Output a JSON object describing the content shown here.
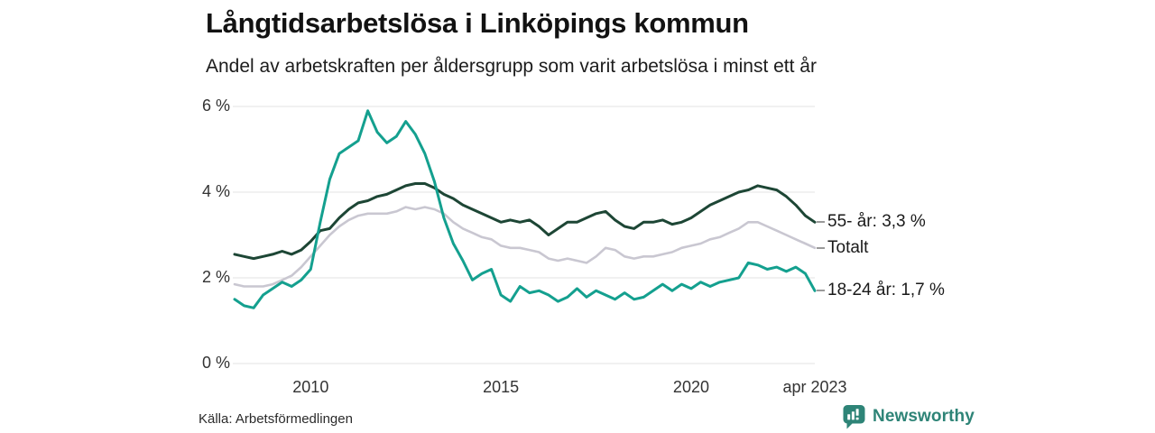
{
  "header": {
    "title": "Långtidsarbetslösa i Linköpings kommun",
    "subtitle": "Andel av arbetskraften per åldersgrupp som varit arbetslösa i minst ett år"
  },
  "footer": {
    "source": "Källa: Arbetsförmedlingen",
    "brand": "Newsworthy"
  },
  "colors": {
    "grid": "#e3e3e3",
    "brand_teal": "#2e8477",
    "series_55": "#1d4635",
    "series_total": "#c9c7d1",
    "series_1824": "#14a08f"
  },
  "chart_data": {
    "type": "line",
    "title": "Långtidsarbetslösa i Linköpings kommun",
    "subtitle": "Andel av arbetskraften per åldersgrupp som varit arbetslösa i minst ett år",
    "unit": "% of labour force",
    "frequency": "quarterly samples of monthly series",
    "x_axis": {
      "start": "2008-01",
      "end": "2023-04",
      "months_span": 183,
      "ticks": [
        {
          "label": "2010",
          "month": 24
        },
        {
          "label": "2015",
          "month": 84
        },
        {
          "label": "2020",
          "month": 144
        },
        {
          "label": "apr 2023",
          "month": 183
        }
      ]
    },
    "y_axis": {
      "min": 0,
      "max": 6,
      "grid": true,
      "ticks": [
        {
          "label": "6 %",
          "value": 6
        },
        {
          "label": "4 %",
          "value": 4
        },
        {
          "label": "2 %",
          "value": 2
        },
        {
          "label": "0 %",
          "value": 0
        }
      ]
    },
    "legend_position": "right-of-line-ends",
    "x_months": [
      0,
      3,
      6,
      9,
      12,
      15,
      18,
      21,
      24,
      27,
      30,
      33,
      36,
      39,
      42,
      45,
      48,
      51,
      54,
      57,
      60,
      63,
      66,
      69,
      72,
      75,
      78,
      81,
      84,
      87,
      90,
      93,
      96,
      99,
      102,
      105,
      108,
      111,
      114,
      117,
      120,
      123,
      126,
      129,
      132,
      135,
      138,
      141,
      144,
      147,
      150,
      153,
      156,
      159,
      162,
      165,
      168,
      171,
      174,
      177,
      180,
      183
    ],
    "series": [
      {
        "id": "55",
        "name": "55- år",
        "end_label": "55- år: 3,3 %",
        "end_value": 3.3,
        "color": "#1d4635",
        "width": 3,
        "values": [
          2.55,
          2.5,
          2.45,
          2.5,
          2.55,
          2.62,
          2.55,
          2.65,
          2.85,
          3.1,
          3.15,
          3.4,
          3.6,
          3.75,
          3.8,
          3.9,
          3.95,
          4.05,
          4.15,
          4.2,
          4.2,
          4.1,
          3.95,
          3.85,
          3.7,
          3.6,
          3.5,
          3.4,
          3.3,
          3.35,
          3.3,
          3.35,
          3.2,
          3.0,
          3.15,
          3.3,
          3.3,
          3.4,
          3.5,
          3.55,
          3.35,
          3.2,
          3.15,
          3.3,
          3.3,
          3.35,
          3.25,
          3.3,
          3.4,
          3.55,
          3.7,
          3.8,
          3.9,
          4.0,
          4.05,
          4.15,
          4.1,
          4.05,
          3.9,
          3.7,
          3.45,
          3.3
        ]
      },
      {
        "id": "total",
        "name": "Totalt",
        "end_label": "Totalt",
        "end_value": 2.7,
        "color": "#c9c7d1",
        "width": 2.6,
        "values": [
          1.85,
          1.8,
          1.8,
          1.8,
          1.85,
          1.95,
          2.05,
          2.25,
          2.5,
          2.75,
          3.0,
          3.2,
          3.35,
          3.45,
          3.5,
          3.5,
          3.5,
          3.55,
          3.65,
          3.6,
          3.65,
          3.6,
          3.5,
          3.3,
          3.15,
          3.05,
          2.95,
          2.9,
          2.75,
          2.7,
          2.7,
          2.65,
          2.6,
          2.45,
          2.4,
          2.45,
          2.4,
          2.35,
          2.5,
          2.7,
          2.65,
          2.5,
          2.45,
          2.5,
          2.5,
          2.55,
          2.6,
          2.7,
          2.75,
          2.8,
          2.9,
          2.95,
          3.05,
          3.15,
          3.3,
          3.3,
          3.2,
          3.1,
          3.0,
          2.9,
          2.8,
          2.7
        ]
      },
      {
        "id": "1824",
        "name": "18-24 år",
        "end_label": "18-24 år: 1,7 %",
        "end_value": 1.7,
        "color": "#14a08f",
        "width": 3,
        "values": [
          1.5,
          1.35,
          1.3,
          1.6,
          1.75,
          1.9,
          1.8,
          1.95,
          2.2,
          3.3,
          4.3,
          4.9,
          5.05,
          5.2,
          5.9,
          5.4,
          5.15,
          5.3,
          5.65,
          5.35,
          4.9,
          4.25,
          3.4,
          2.8,
          2.4,
          1.95,
          2.1,
          2.2,
          1.6,
          1.45,
          1.8,
          1.65,
          1.7,
          1.6,
          1.45,
          1.55,
          1.75,
          1.55,
          1.7,
          1.6,
          1.5,
          1.65,
          1.5,
          1.55,
          1.7,
          1.85,
          1.7,
          1.85,
          1.75,
          1.9,
          1.8,
          1.9,
          1.95,
          2.0,
          2.35,
          2.3,
          2.2,
          2.25,
          2.15,
          2.25,
          2.1,
          1.7
        ]
      }
    ]
  }
}
